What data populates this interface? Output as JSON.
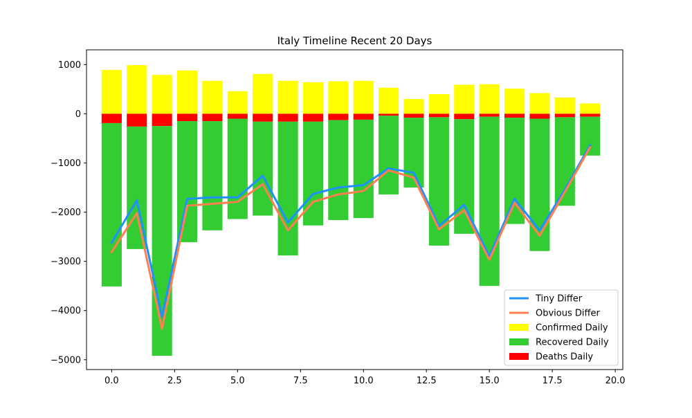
{
  "chart_data": {
    "type": "bar",
    "title": "Italy Timeline Recent 20 Days",
    "xlabel": "",
    "ylabel": "",
    "xlim": [
      -1.0,
      20.3
    ],
    "ylim": [
      -5200,
      1300
    ],
    "x_ticks": [
      0.0,
      2.5,
      5.0,
      7.5,
      10.0,
      12.5,
      15.0,
      17.5,
      20.0
    ],
    "x_tick_labels": [
      "0.0",
      "2.5",
      "5.0",
      "7.5",
      "10.0",
      "12.5",
      "15.0",
      "17.5",
      "20.0"
    ],
    "y_ticks": [
      1000,
      0,
      -1000,
      -2000,
      -3000,
      -4000,
      -5000
    ],
    "y_tick_labels": [
      "1000",
      "0",
      "−1000",
      "−2000",
      "−3000",
      "−4000",
      "−5000"
    ],
    "x": [
      0,
      1,
      2,
      3,
      4,
      5,
      6,
      7,
      8,
      9,
      10,
      11,
      12,
      13,
      14,
      15,
      16,
      17,
      18,
      19
    ],
    "confirmed": [
      890,
      990,
      790,
      880,
      670,
      460,
      810,
      670,
      640,
      660,
      670,
      530,
      300,
      400,
      590,
      600,
      510,
      420,
      330,
      210
    ],
    "deaths": [
      -190,
      -260,
      -250,
      -150,
      -150,
      -100,
      -160,
      -160,
      -160,
      -130,
      -120,
      -40,
      -80,
      -70,
      -110,
      -60,
      -80,
      -100,
      -70,
      -60
    ],
    "recovered": [
      -3320,
      -2490,
      -4670,
      -2460,
      -2220,
      -2040,
      -1910,
      -2720,
      -2110,
      -2030,
      -2000,
      -1600,
      -1420,
      -2610,
      -2330,
      -3440,
      -2160,
      -2690,
      -1800,
      -790
    ],
    "tiny_differ": [
      -2620,
      -1760,
      -4130,
      -1730,
      -1700,
      -1700,
      -1260,
      -2210,
      -1630,
      -1500,
      -1450,
      -1110,
      -1200,
      -2280,
      -1850,
      -2900,
      -1730,
      -2370,
      -1540,
      -640
    ],
    "obvious_differ": [
      -2810,
      -2020,
      -4370,
      -1870,
      -1830,
      -1790,
      -1430,
      -2370,
      -1790,
      -1640,
      -1570,
      -1150,
      -1300,
      -2350,
      -1960,
      -2970,
      -1810,
      -2480,
      -1590,
      -680
    ],
    "colors": {
      "confirmed": "#ffff00",
      "recovered": "#33cc33",
      "deaths": "#ff0000",
      "tiny_differ": "#1e90ff",
      "obvious_differ": "#ff7f50"
    },
    "legend_position": "lower-right",
    "legend": [
      {
        "label": "Tiny Differ",
        "kind": "line",
        "key": "tiny_differ"
      },
      {
        "label": "Obvious Differ",
        "kind": "line",
        "key": "obvious_differ"
      },
      {
        "label": "Confirmed Daily",
        "kind": "patch",
        "key": "confirmed"
      },
      {
        "label": "Recovered Daily",
        "kind": "patch",
        "key": "recovered"
      },
      {
        "label": "Deaths Daily",
        "kind": "patch",
        "key": "deaths"
      }
    ]
  }
}
